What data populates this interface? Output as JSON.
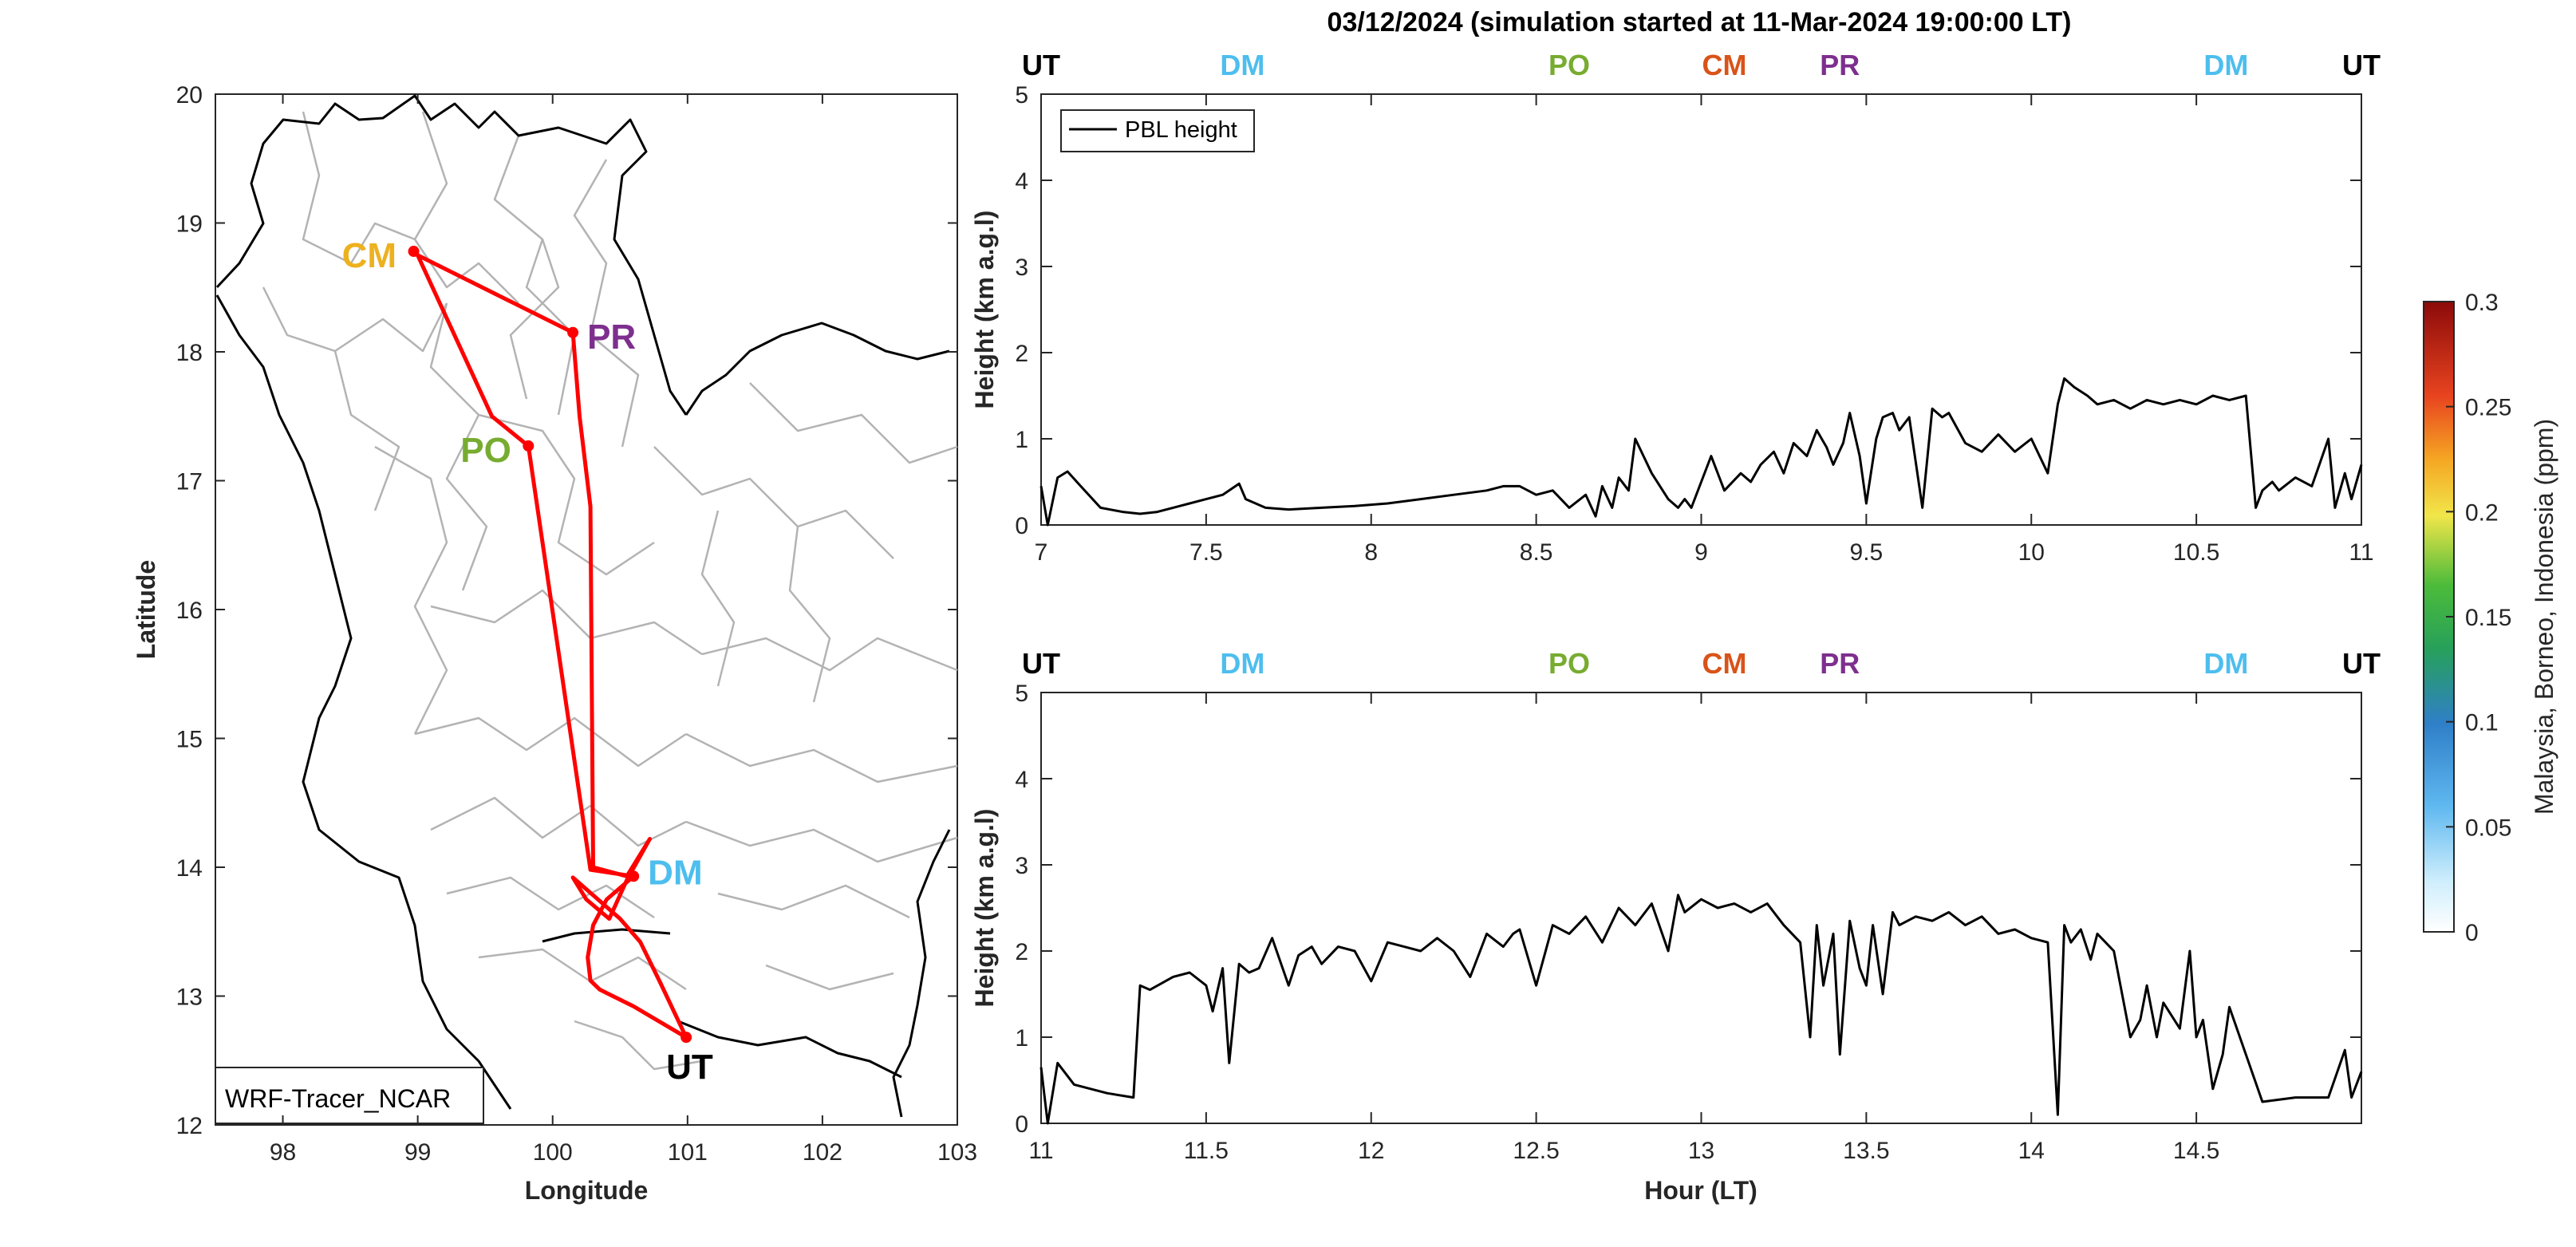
{
  "title": "03/12/2024 (simulation started at 11-Mar-2024 19:00:00 LT)",
  "colors": {
    "UT": "#000000",
    "DM": "#4DBEEE",
    "PO": "#77AC30",
    "CM": "#EDB120",
    "CM_top": "#D95319",
    "PR": "#7E2F8E",
    "track": "#FF0000"
  },
  "map": {
    "xlabel": "Longitude",
    "ylabel": "Latitude",
    "xlim": [
      97.5,
      103
    ],
    "ylim": [
      12,
      20
    ],
    "xticks": [
      "98",
      "99",
      "100",
      "101",
      "102",
      "103"
    ],
    "yticks": [
      "12",
      "13",
      "14",
      "15",
      "16",
      "17",
      "18",
      "19",
      "20"
    ],
    "model_label": "WRF-Tracer_NCAR",
    "sites": [
      {
        "name": "CM",
        "lon": 98.97,
        "lat": 18.78
      },
      {
        "name": "PR",
        "lon": 100.15,
        "lat": 18.15
      },
      {
        "name": "PO",
        "lon": 99.82,
        "lat": 17.27
      },
      {
        "name": "DM",
        "lon": 100.6,
        "lat": 13.93
      },
      {
        "name": "UT",
        "lon": 100.99,
        "lat": 12.68
      }
    ],
    "track": [
      [
        100.99,
        12.68
      ],
      [
        100.6,
        12.92
      ],
      [
        100.35,
        13.05
      ],
      [
        100.28,
        13.12
      ],
      [
        100.26,
        13.3
      ],
      [
        100.3,
        13.55
      ],
      [
        100.4,
        13.75
      ],
      [
        100.6,
        13.93
      ],
      [
        100.28,
        13.98
      ],
      [
        99.82,
        17.27
      ],
      [
        99.55,
        17.5
      ],
      [
        99.0,
        18.75
      ],
      [
        100.15,
        18.15
      ],
      [
        100.2,
        17.5
      ],
      [
        100.28,
        16.8
      ],
      [
        100.3,
        14.0
      ],
      [
        100.55,
        13.93
      ],
      [
        100.72,
        14.22
      ],
      [
        100.55,
        13.9
      ],
      [
        100.42,
        13.6
      ],
      [
        100.25,
        13.75
      ],
      [
        100.15,
        13.92
      ],
      [
        100.5,
        13.6
      ],
      [
        100.65,
        13.42
      ],
      [
        100.8,
        13.1
      ],
      [
        100.99,
        12.68
      ]
    ]
  },
  "panels": [
    {
      "xlim": [
        7,
        11
      ],
      "xticks": [
        "7",
        "7.5",
        "8",
        "8.5",
        "9",
        "9.5",
        "10",
        "10.5",
        "11"
      ],
      "ylim": [
        0,
        5
      ],
      "yticks": [
        "0",
        "1",
        "2",
        "3",
        "4",
        "5"
      ],
      "ylabel": "Height (km a.g.l)",
      "legend": "PBL height",
      "flight_labels": [
        {
          "text": "UT",
          "hour": 7.0,
          "color": "#000000"
        },
        {
          "text": "DM",
          "hour": 7.61,
          "color": "#4DBEEE"
        },
        {
          "text": "PO",
          "hour": 8.6,
          "color": "#77AC30"
        },
        {
          "text": "CM",
          "hour": 9.07,
          "color": "#D95319"
        },
        {
          "text": "PR",
          "hour": 9.42,
          "color": "#7E2F8E"
        },
        {
          "text": "DM",
          "hour": 10.59,
          "color": "#4DBEEE"
        },
        {
          "text": "UT",
          "hour": 11.0,
          "color": "#000000"
        }
      ]
    },
    {
      "xlim": [
        11,
        15
      ],
      "xticks": [
        "11",
        "11.5",
        "12",
        "12.5",
        "13",
        "13.5",
        "14",
        "14.5"
      ],
      "ylim": [
        0,
        5
      ],
      "yticks": [
        "0",
        "1",
        "2",
        "3",
        "4",
        "5"
      ],
      "ylabel": "Height (km a.g.l)",
      "xlabel": "Hour (LT)",
      "flight_labels": [
        {
          "text": "UT",
          "hour": 11.0,
          "color": "#000000"
        },
        {
          "text": "DM",
          "hour": 11.61,
          "color": "#4DBEEE"
        },
        {
          "text": "PO",
          "hour": 12.6,
          "color": "#77AC30"
        },
        {
          "text": "CM",
          "hour": 13.07,
          "color": "#D95319"
        },
        {
          "text": "PR",
          "hour": 13.42,
          "color": "#7E2F8E"
        },
        {
          "text": "DM",
          "hour": 14.59,
          "color": "#4DBEEE"
        },
        {
          "text": "UT",
          "hour": 15.0,
          "color": "#000000"
        }
      ]
    }
  ],
  "colorbar": {
    "label": "Malaysia, Borneo, Indonesia (ppm)",
    "ticks": [
      "0",
      "0.05",
      "0.1",
      "0.15",
      "0.2",
      "0.25",
      "0.3"
    ],
    "range": [
      0,
      0.3
    ]
  },
  "chart_data": [
    {
      "type": "line",
      "title": "03/12/2024 (simulation started at 11-Mar-2024 19:00:00 LT)",
      "series": [
        {
          "name": "PBL height"
        }
      ],
      "ylabel": "Height (km a.g.l)",
      "xlim": [
        7,
        11
      ],
      "ylim": [
        0,
        5
      ],
      "x": [
        7.0,
        7.02,
        7.05,
        7.08,
        7.12,
        7.18,
        7.25,
        7.3,
        7.35,
        7.4,
        7.45,
        7.5,
        7.55,
        7.6,
        7.62,
        7.68,
        7.75,
        7.85,
        7.95,
        8.05,
        8.15,
        8.25,
        8.35,
        8.4,
        8.45,
        8.5,
        8.55,
        8.6,
        8.65,
        8.68,
        8.7,
        8.73,
        8.75,
        8.78,
        8.8,
        8.85,
        8.9,
        8.93,
        8.95,
        8.97,
        9.0,
        9.03,
        9.07,
        9.12,
        9.15,
        9.18,
        9.22,
        9.25,
        9.28,
        9.32,
        9.35,
        9.38,
        9.4,
        9.43,
        9.45,
        9.48,
        9.5,
        9.53,
        9.55,
        9.58,
        9.6,
        9.63,
        9.67,
        9.7,
        9.73,
        9.75,
        9.8,
        9.85,
        9.9,
        9.95,
        10.0,
        10.05,
        10.08,
        10.1,
        10.13,
        10.17,
        10.2,
        10.25,
        10.3,
        10.35,
        10.4,
        10.45,
        10.5,
        10.55,
        10.6,
        10.65,
        10.68,
        10.7,
        10.73,
        10.75,
        10.8,
        10.85,
        10.9,
        10.92,
        10.95,
        10.97,
        11.0
      ],
      "y": [
        0.45,
        0.0,
        0.55,
        0.62,
        0.45,
        0.2,
        0.15,
        0.13,
        0.15,
        0.2,
        0.25,
        0.3,
        0.35,
        0.48,
        0.3,
        0.2,
        0.18,
        0.2,
        0.22,
        0.25,
        0.3,
        0.35,
        0.4,
        0.45,
        0.45,
        0.35,
        0.4,
        0.2,
        0.35,
        0.1,
        0.45,
        0.2,
        0.55,
        0.4,
        1.0,
        0.6,
        0.3,
        0.2,
        0.3,
        0.2,
        0.5,
        0.8,
        0.4,
        0.6,
        0.5,
        0.7,
        0.85,
        0.6,
        0.95,
        0.8,
        1.1,
        0.9,
        0.7,
        0.95,
        1.3,
        0.8,
        0.25,
        1.0,
        1.25,
        1.3,
        1.1,
        1.25,
        0.2,
        1.35,
        1.25,
        1.3,
        0.95,
        0.85,
        1.05,
        0.85,
        1.0,
        0.6,
        1.4,
        1.7,
        1.6,
        1.5,
        1.4,
        1.45,
        1.35,
        1.45,
        1.4,
        1.45,
        1.4,
        1.5,
        1.45,
        1.5,
        0.2,
        0.4,
        0.5,
        0.4,
        0.55,
        0.45,
        1.0,
        0.2,
        0.6,
        0.3,
        0.7
      ]
    },
    {
      "type": "line",
      "series": [
        {
          "name": "PBL height"
        }
      ],
      "xlabel": "Hour (LT)",
      "ylabel": "Height (km a.g.l)",
      "xlim": [
        11,
        15
      ],
      "ylim": [
        0,
        5
      ],
      "x": [
        11.0,
        11.02,
        11.05,
        11.1,
        11.2,
        11.28,
        11.3,
        11.33,
        11.4,
        11.45,
        11.5,
        11.52,
        11.55,
        11.57,
        11.6,
        11.63,
        11.66,
        11.7,
        11.75,
        11.78,
        11.82,
        11.85,
        11.9,
        11.95,
        12.0,
        12.05,
        12.1,
        12.15,
        12.2,
        12.25,
        12.3,
        12.35,
        12.4,
        12.43,
        12.45,
        12.5,
        12.55,
        12.6,
        12.65,
        12.7,
        12.75,
        12.8,
        12.85,
        12.9,
        12.93,
        12.95,
        13.0,
        13.05,
        13.1,
        13.15,
        13.2,
        13.25,
        13.3,
        13.33,
        13.35,
        13.37,
        13.4,
        13.42,
        13.45,
        13.48,
        13.5,
        13.52,
        13.55,
        13.58,
        13.6,
        13.65,
        13.7,
        13.75,
        13.8,
        13.85,
        13.9,
        13.95,
        14.0,
        14.05,
        14.08,
        14.1,
        14.12,
        14.15,
        14.18,
        14.2,
        14.25,
        14.3,
        14.33,
        14.35,
        14.38,
        14.4,
        14.45,
        14.48,
        14.5,
        14.52,
        14.55,
        14.58,
        14.6,
        14.65,
        14.7,
        14.8,
        14.9,
        14.95,
        14.97,
        15.0
      ],
      "y": [
        0.65,
        0.0,
        0.7,
        0.45,
        0.35,
        0.3,
        1.6,
        1.55,
        1.7,
        1.75,
        1.6,
        1.3,
        1.8,
        0.7,
        1.85,
        1.75,
        1.8,
        2.15,
        1.6,
        1.95,
        2.05,
        1.85,
        2.05,
        2.0,
        1.65,
        2.1,
        2.05,
        2.0,
        2.15,
        2.0,
        1.7,
        2.2,
        2.05,
        2.2,
        2.25,
        1.6,
        2.3,
        2.2,
        2.4,
        2.1,
        2.5,
        2.3,
        2.55,
        2.0,
        2.65,
        2.45,
        2.6,
        2.5,
        2.55,
        2.45,
        2.55,
        2.3,
        2.1,
        1.0,
        2.3,
        1.6,
        2.2,
        0.8,
        2.35,
        1.8,
        1.6,
        2.3,
        1.5,
        2.45,
        2.3,
        2.4,
        2.35,
        2.45,
        2.3,
        2.4,
        2.2,
        2.25,
        2.15,
        2.1,
        0.1,
        2.3,
        2.1,
        2.25,
        1.9,
        2.2,
        2.0,
        1.0,
        1.2,
        1.6,
        1.0,
        1.4,
        1.1,
        2.0,
        1.0,
        1.2,
        0.4,
        0.8,
        1.35,
        0.8,
        0.25,
        0.3,
        0.3,
        0.85,
        0.3,
        0.6
      ]
    }
  ]
}
